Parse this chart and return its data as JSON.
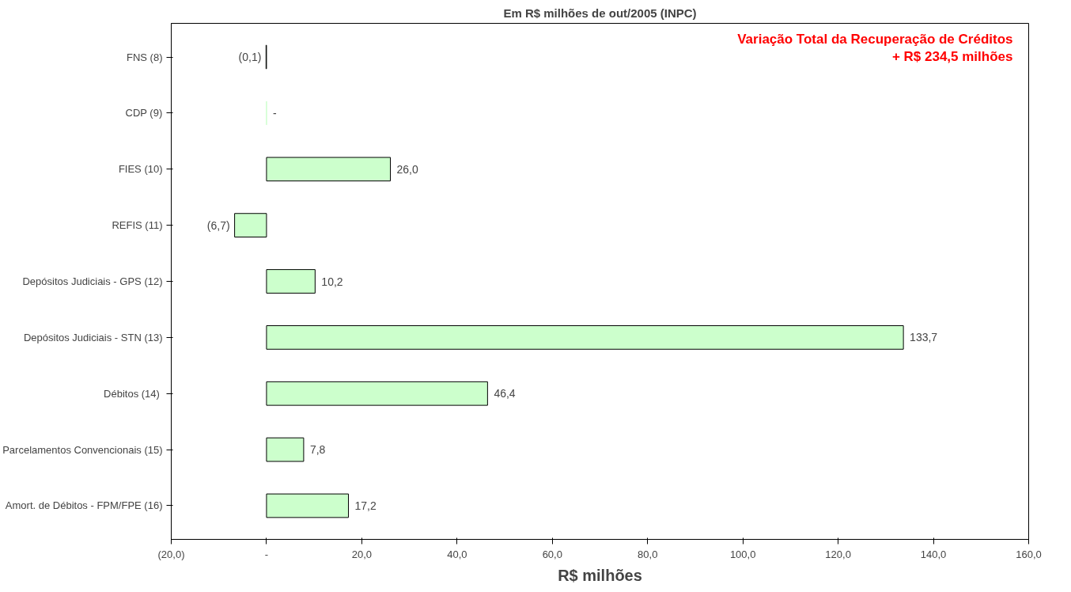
{
  "chart_data": {
    "type": "bar",
    "orientation": "horizontal",
    "title": "Em R$ milhões de out/2005 (INPC)",
    "xlabel": "R$ milhões",
    "categories": [
      "FNS (8)",
      "CDP (9)",
      "FIES (10)",
      "REFIS (11)",
      "Depósitos Judiciais - GPS (12)",
      "Depósitos Judiciais - STN (13)",
      "Débitos  (14)",
      "Parcelamentos Convencionais (15)",
      "Amort. de Débitos - FPM/FPE (16)"
    ],
    "values": [
      -0.1,
      0,
      26.0,
      -6.7,
      10.2,
      133.7,
      46.4,
      7.8,
      17.2
    ],
    "value_labels": [
      "(0,1)",
      "-",
      "26,0",
      "(6,7)",
      "10,2",
      "133,7",
      "46,4",
      "7,8",
      "17,2"
    ],
    "color": "#ccffcc",
    "xlim": [
      -20,
      160
    ],
    "xticks": [
      {
        "value": -20,
        "label": "(20,0)"
      },
      {
        "value": 0,
        "label": "-"
      },
      {
        "value": 20,
        "label": "20,0"
      },
      {
        "value": 40,
        "label": "40,0"
      },
      {
        "value": 60,
        "label": "60,0"
      },
      {
        "value": 80,
        "label": "80,0"
      },
      {
        "value": 100,
        "label": "100,0"
      },
      {
        "value": 120,
        "label": "120,0"
      },
      {
        "value": 140,
        "label": "140,0"
      },
      {
        "value": 160,
        "label": "160,0"
      }
    ],
    "annotations": [
      "Variação Total da Recuperação de Créditos\n+ R$ 234,5 milhões"
    ],
    "grid": false
  }
}
